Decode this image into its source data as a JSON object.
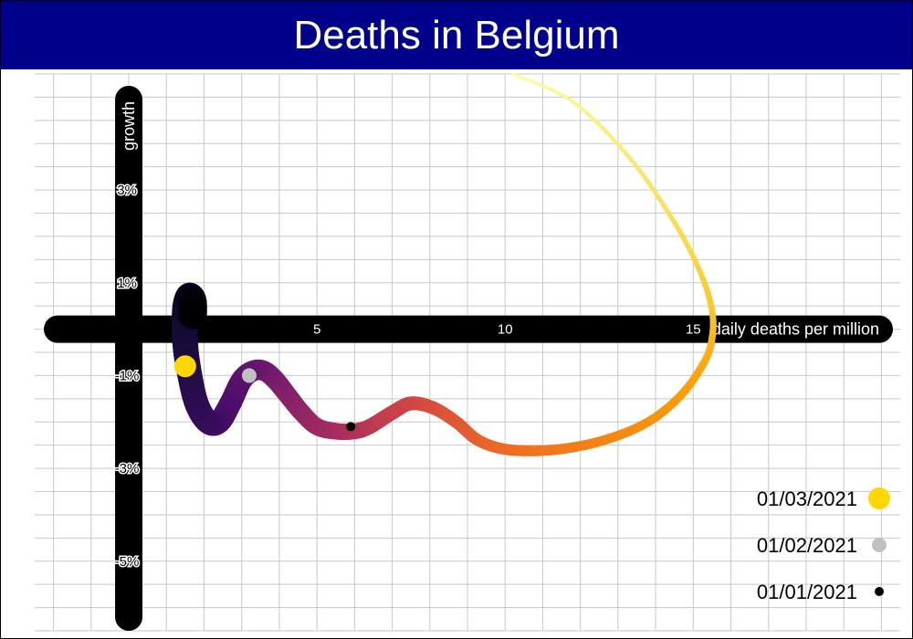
{
  "chart_data": {
    "type": "line",
    "title": "Deaths in Belgium",
    "xlabel": "daily deaths per million",
    "ylabel": "growth",
    "xlim": [
      -2.5,
      20.5
    ],
    "ylim": [
      -6.5,
      5.5
    ],
    "x_ticks": [
      5,
      10,
      15
    ],
    "x_tick_labels": [
      "5",
      "10",
      "15"
    ],
    "y_ticks": [
      3,
      1,
      -1,
      -3,
      -5
    ],
    "y_tick_labels": [
      "3%",
      "1%",
      "-1%",
      "-3%",
      "-5%"
    ],
    "grid": true,
    "series": [
      {
        "x": [
          10.2,
          11.8,
          13.3,
          14.5,
          15.2,
          15.5,
          15.5,
          15.3,
          14.7,
          13.8,
          12.6,
          11.3,
          10.1,
          9.3,
          8.7,
          8.1,
          7.5,
          7.0,
          6.4,
          6.0,
          5.5,
          5.0,
          4.6,
          4.2,
          3.9,
          3.6,
          3.3,
          3.0,
          2.7,
          2.4,
          2.1,
          1.8,
          1.6,
          1.5,
          1.5,
          1.6,
          1.7,
          1.7
        ],
        "y": [
          5.5,
          4.9,
          3.7,
          2.3,
          1.2,
          0.4,
          -0.2,
          -0.7,
          -1.4,
          -2.0,
          -2.4,
          -2.6,
          -2.6,
          -2.4,
          -2.0,
          -1.7,
          -1.6,
          -1.8,
          -2.1,
          -2.2,
          -2.2,
          -2.1,
          -1.8,
          -1.4,
          -1.1,
          -0.9,
          -0.9,
          -1.1,
          -1.6,
          -2.0,
          -2.0,
          -1.6,
          -0.9,
          -0.3,
          0.4,
          0.7,
          0.6,
          0.3
        ]
      }
    ],
    "colormap": [
      "#000004",
      "#1b0c41",
      "#4a0c6b",
      "#781c6d",
      "#a52c60",
      "#cf4446",
      "#ed6925",
      "#fb9b06",
      "#f7d13d",
      "#fcffa4"
    ],
    "legend": {
      "placement": "bottom-right",
      "items": [
        {
          "label": "01/03/2021",
          "color": "#ffd700",
          "x": 1.5,
          "y": -0.8
        },
        {
          "label": "01/02/2021",
          "color": "#c0c0c0",
          "x": 3.2,
          "y": -1.0
        },
        {
          "label": "01/01/2021",
          "color": "#000000",
          "x": 5.9,
          "y": -2.1
        }
      ]
    }
  }
}
